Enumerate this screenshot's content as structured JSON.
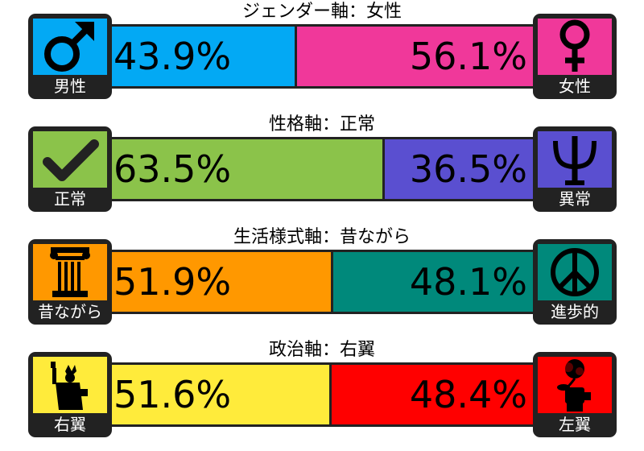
{
  "chart_data": {
    "type": "bar",
    "stacked": true,
    "orientation": "horizontal",
    "axes": [
      {
        "title": "ジェンダー軸：女性",
        "left": {
          "label": "男性",
          "value": 43.9,
          "display": "43.9%",
          "color": "#03a9f4",
          "icon": "male-symbol-icon"
        },
        "right": {
          "label": "女性",
          "value": 56.1,
          "display": "56.1%",
          "color": "#f0389a",
          "icon": "female-symbol-icon"
        }
      },
      {
        "title": "性格軸：正常",
        "left": {
          "label": "正常",
          "value": 63.5,
          "display": "63.5%",
          "color": "#8bc34a",
          "icon": "checkmark-icon"
        },
        "right": {
          "label": "異常",
          "value": 36.5,
          "display": "36.5%",
          "color": "#5a4fd0",
          "icon": "psi-icon"
        }
      },
      {
        "title": "生活様式軸：昔ながら",
        "left": {
          "label": "昔ながら",
          "value": 51.9,
          "display": "51.9%",
          "color": "#ff9800",
          "icon": "column-icon"
        },
        "right": {
          "label": "進歩的",
          "value": 48.1,
          "display": "48.1%",
          "color": "#00897b",
          "icon": "peace-icon"
        }
      },
      {
        "title": "政治軸：右翼",
        "left": {
          "label": "右翼",
          "value": 51.6,
          "display": "51.6%",
          "color": "#ffeb3b",
          "icon": "statue-of-liberty-icon"
        },
        "right": {
          "label": "左翼",
          "value": 48.4,
          "display": "48.4%",
          "color": "#ff0000",
          "icon": "fist-rose-icon"
        }
      }
    ]
  }
}
